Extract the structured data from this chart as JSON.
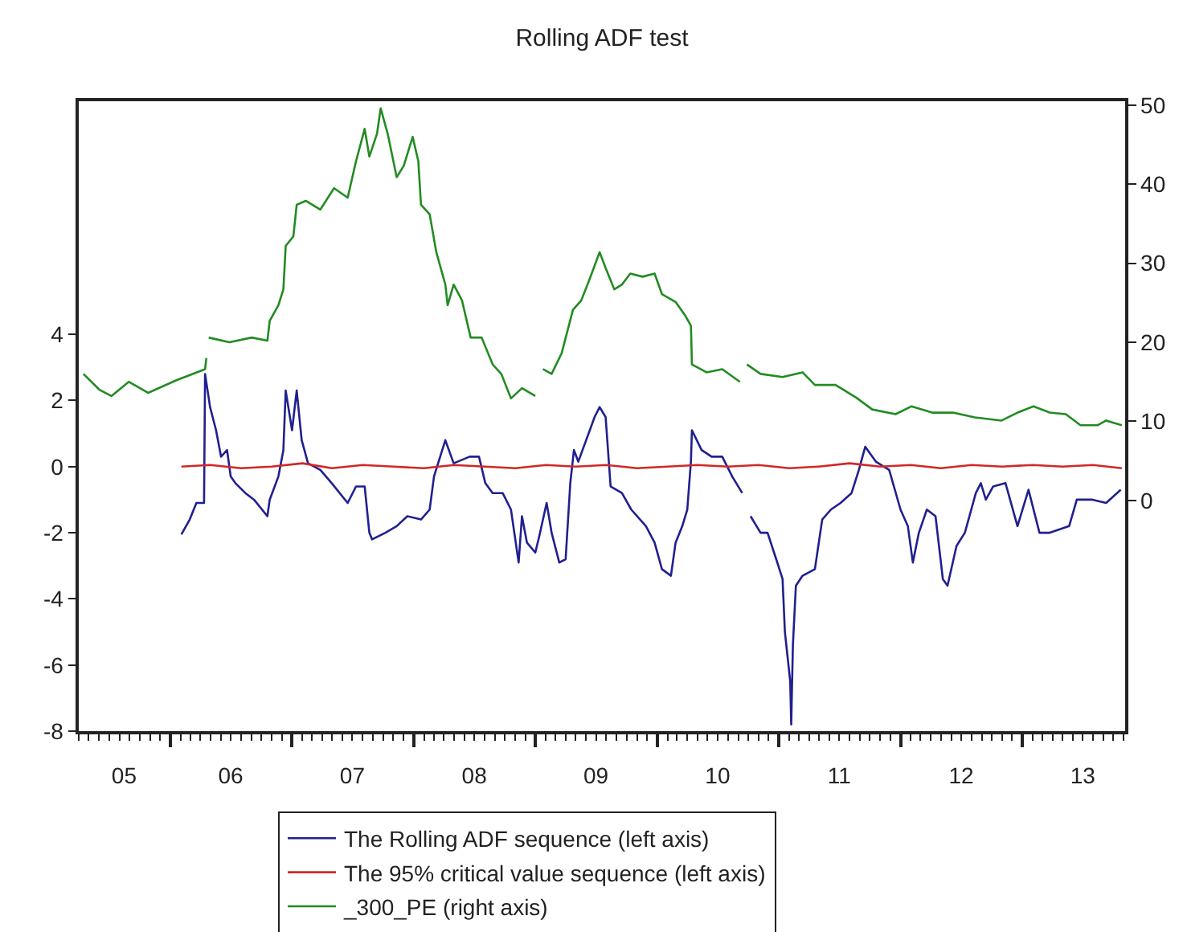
{
  "chart_data": {
    "type": "line",
    "title": "Rolling ADF test",
    "grid": false,
    "legend": "bottom",
    "xlim": [
      "2005-04-01",
      "2013-11-05"
    ],
    "xticks": [
      {
        "value": "2005-08-15",
        "label": "05"
      },
      {
        "value": "2006-01-01",
        "label": null
      },
      {
        "value": "2006-07-01",
        "label": "06"
      },
      {
        "value": "2007-01-01",
        "label": null
      },
      {
        "value": "2007-07-01",
        "label": "07"
      },
      {
        "value": "2008-01-01",
        "label": null
      },
      {
        "value": "2008-07-01",
        "label": "08"
      },
      {
        "value": "2009-01-01",
        "label": null
      },
      {
        "value": "2009-07-01",
        "label": "09"
      },
      {
        "value": "2010-01-01",
        "label": null
      },
      {
        "value": "2010-07-01",
        "label": "10"
      },
      {
        "value": "2011-01-01",
        "label": null
      },
      {
        "value": "2011-07-01",
        "label": "11"
      },
      {
        "value": "2012-01-01",
        "label": null
      },
      {
        "value": "2012-07-01",
        "label": "12"
      },
      {
        "value": "2013-01-01",
        "label": null
      },
      {
        "value": "2013-07-01",
        "label": "13"
      }
    ],
    "ylim": [
      -8,
      11.05
    ],
    "yticks": [
      -8,
      -6,
      -4,
      -2,
      0,
      2,
      4
    ],
    "y2lim": [
      -29.2,
      50.5
    ],
    "y2ticks": [
      0,
      10,
      20,
      30,
      40,
      50
    ],
    "series": [
      {
        "name": "The Rolling ADF sequence (left axis)",
        "color": "#202090",
        "x": [
          "2006-02-03",
          "2006-02-28",
          "2006-03-20",
          "2006-04-12",
          "2006-04-15",
          "2006-04-30",
          "2006-05-18",
          "2006-06-02",
          "2006-06-20",
          "2006-07-01",
          "2006-07-15",
          "2006-08-14",
          "2006-09-09",
          "2006-10-19",
          "2006-10-26",
          "2006-11-21",
          "2006-12-06",
          "2006-12-13",
          "2007-01-01",
          "2007-01-15",
          "2007-01-30",
          "2007-02-18",
          "2007-03-27",
          "2007-04-30",
          "2007-06-17",
          "2007-07-12",
          "2007-08-07",
          "2007-08-21",
          "2007-08-29",
          "2007-10-08",
          "2007-11-11",
          "2007-12-13",
          "2008-01-23",
          "2008-02-18",
          "2008-03-02",
          "2008-04-05",
          "2008-04-30",
          "2008-06-17",
          "2008-07-15",
          "2008-08-03",
          "2008-08-25",
          "2008-09-24",
          "2008-10-19",
          "2008-11-11",
          "2008-11-21",
          "2008-12-06",
          "2008-12-31",
          "2009-01-12",
          "2009-02-03",
          "2009-02-18",
          "2009-03-13",
          "2009-04-01",
          "2009-04-15",
          "2009-04-26",
          "2009-05-09",
          "2009-06-27",
          "2009-07-12",
          "2009-07-30",
          "2009-08-14",
          "2009-09-17",
          "2009-10-15",
          "2009-11-28",
          "2009-12-24",
          "2010-01-15",
          "2010-02-11",
          "2010-02-25",
          "2010-03-17",
          "2010-04-01",
          "2010-04-12",
          "2010-04-15",
          "2010-05-14",
          "2010-06-13",
          "2010-07-15",
          "2010-08-14",
          "2010-09-13",
          "2010-09-25",
          "2010-10-08",
          "2010-11-07",
          "2010-11-28",
          "2010-12-24",
          "2011-01-12",
          "2011-01-19",
          "2011-02-04",
          "2011-02-07",
          "2011-02-12",
          "2011-02-21",
          "2011-03-13",
          "2011-04-19",
          "2011-05-11",
          "2011-06-06",
          "2011-07-05",
          "2011-08-07",
          "2011-08-29",
          "2011-09-17",
          "2011-10-19",
          "2011-11-28",
          "2012-01-01",
          "2012-01-23",
          "2012-02-07",
          "2012-02-25",
          "2012-03-20",
          "2012-04-15",
          "2012-05-07",
          "2012-05-21",
          "2012-06-17",
          "2012-07-12",
          "2012-08-14",
          "2012-08-29",
          "2012-09-13",
          "2012-10-05",
          "2012-11-11",
          "2012-12-17",
          "2013-01-19",
          "2013-02-21",
          "2013-03-24",
          "2013-05-21",
          "2013-06-13",
          "2013-07-30",
          "2013-09-09",
          "2013-10-23"
        ],
        "values": [
          -2.05,
          -1.6,
          -1.1,
          -1.1,
          2.8,
          1.8,
          1.1,
          0.3,
          0.5,
          -0.3,
          -0.5,
          -0.8,
          -1.0,
          -1.5,
          -1.0,
          -0.3,
          0.5,
          2.3,
          1.1,
          2.3,
          0.8,
          0.1,
          -0.1,
          -0.5,
          -1.1,
          -0.6,
          -0.6,
          -2.0,
          -2.2,
          -2.0,
          -1.8,
          -1.5,
          -1.6,
          -1.3,
          -0.3,
          0.8,
          0.1,
          0.3,
          0.3,
          -0.5,
          -0.8,
          -0.8,
          -1.3,
          -2.9,
          -1.5,
          -2.3,
          -2.6,
          -2.1,
          -1.1,
          -2.0,
          -2.9,
          -2.8,
          -0.5,
          0.5,
          0.15,
          1.5,
          1.8,
          1.5,
          -0.6,
          -0.8,
          -1.3,
          -1.8,
          -2.3,
          -3.1,
          -3.3,
          -2.3,
          -1.8,
          -1.3,
          0.15,
          1.1,
          0.5,
          0.3,
          0.3,
          -0.3,
          -0.8,
          null,
          -1.5,
          -2.0,
          -2.0,
          -2.8,
          -3.4,
          -5.0,
          -6.5,
          -7.8,
          -5.4,
          -3.6,
          -3.3,
          -3.1,
          -1.6,
          -1.3,
          -1.1,
          -0.8,
          -0.1,
          0.6,
          0.15,
          -0.1,
          -1.3,
          -1.8,
          -2.9,
          -2.0,
          -1.3,
          -1.5,
          -3.4,
          -3.6,
          -2.4,
          -2.0,
          -0.8,
          -0.5,
          -1.0,
          -0.6,
          -0.5,
          -1.8,
          -0.7,
          -2.0,
          -2.0,
          -1.8,
          -1.0,
          -1.0,
          -1.1,
          -0.7
        ]
      },
      {
        "name": "The 95% critical value sequence (left axis)",
        "color": "#d02828",
        "x": [
          "2006-02-03",
          "2006-05-01",
          "2006-08-01",
          "2006-11-01",
          "2007-02-01",
          "2007-05-01",
          "2007-08-01",
          "2007-11-01",
          "2008-02-01",
          "2008-05-01",
          "2008-08-01",
          "2008-11-01",
          "2009-02-01",
          "2009-05-01",
          "2009-08-01",
          "2009-11-01",
          "2010-02-01",
          "2010-05-01",
          "2010-08-01",
          "2010-11-01",
          "2011-02-01",
          "2011-05-01",
          "2011-08-01",
          "2011-11-01",
          "2012-02-01",
          "2012-05-01",
          "2012-08-01",
          "2012-11-01",
          "2013-02-01",
          "2013-05-01",
          "2013-08-01",
          "2013-10-26"
        ],
        "values": [
          0.0,
          0.05,
          -0.05,
          0.0,
          0.1,
          -0.05,
          0.05,
          0.0,
          -0.05,
          0.05,
          0.0,
          -0.05,
          0.05,
          0.0,
          0.05,
          -0.05,
          0.0,
          0.05,
          0.0,
          0.05,
          -0.05,
          0.0,
          0.1,
          0.0,
          0.05,
          -0.05,
          0.05,
          0.0,
          0.05,
          0.0,
          0.05,
          -0.05
        ]
      },
      {
        "name": "_300_PE (right axis)",
        "color": "#228b22",
        "axis": "y2",
        "x": [
          "2005-04-15",
          "2005-06-02",
          "2005-07-08",
          "2005-08-29",
          "2005-10-26",
          "2006-01-19",
          "2006-04-15",
          "2006-04-19",
          "2006-04-22",
          "2006-04-26",
          "2006-06-27",
          "2006-09-02",
          "2006-10-19",
          "2006-10-26",
          "2006-11-21",
          "2006-12-06",
          "2006-12-13",
          "2007-01-05",
          "2007-01-15",
          "2007-02-11",
          "2007-03-27",
          "2007-05-07",
          "2007-06-17",
          "2007-07-12",
          "2007-08-07",
          "2007-08-21",
          "2007-09-13",
          "2007-09-24",
          "2007-10-15",
          "2007-11-11",
          "2007-12-02",
          "2007-12-29",
          "2008-01-15",
          "2008-01-23",
          "2008-02-18",
          "2008-03-09",
          "2008-04-05",
          "2008-04-12",
          "2008-04-30",
          "2008-05-25",
          "2008-06-20",
          "2008-07-23",
          "2008-08-25",
          "2008-09-20",
          "2008-10-19",
          "2008-11-21",
          "2008-12-31",
          "2009-01-10",
          "2009-01-23",
          "2009-02-18",
          "2009-03-20",
          "2009-04-23",
          "2009-05-18",
          "2009-06-13",
          "2009-07-12",
          "2009-07-30",
          "2009-08-25",
          "2009-09-17",
          "2009-10-12",
          "2009-11-18",
          "2009-12-24",
          "2010-01-15",
          "2010-02-25",
          "2010-03-27",
          "2010-04-12",
          "2010-04-15",
          "2010-05-29",
          "2010-07-15",
          "2010-09-06",
          "2010-09-16",
          "2010-09-27",
          "2010-11-07",
          "2011-01-12",
          "2011-03-13",
          "2011-04-19",
          "2011-06-20",
          "2011-08-21",
          "2011-10-08",
          "2011-12-17",
          "2012-02-03",
          "2012-04-05",
          "2012-06-06",
          "2012-08-11",
          "2012-10-30",
          "2012-12-17",
          "2013-02-03",
          "2013-03-24",
          "2013-05-11",
          "2013-06-24",
          "2013-08-14",
          "2013-09-09",
          "2013-10-26"
        ],
        "values": [
          16.0,
          14.0,
          13.2,
          15.0,
          13.6,
          15.2,
          16.6,
          18.0,
          null,
          20.6,
          20.0,
          20.6,
          20.2,
          22.7,
          24.7,
          26.7,
          32.2,
          33.4,
          37.4,
          37.9,
          36.8,
          39.5,
          38.3,
          42.9,
          47.0,
          43.5,
          46.4,
          49.6,
          46.4,
          40.9,
          42.3,
          46.0,
          42.9,
          37.4,
          36.2,
          31.4,
          27.3,
          24.7,
          27.3,
          25.3,
          20.6,
          20.6,
          17.2,
          16.0,
          12.9,
          14.2,
          13.2,
          null,
          16.6,
          16.0,
          18.6,
          24.1,
          25.3,
          28.1,
          31.4,
          29.4,
          26.7,
          27.3,
          28.7,
          28.3,
          28.7,
          26.1,
          25.1,
          23.3,
          22.1,
          17.2,
          16.2,
          16.6,
          15.0,
          null,
          17.2,
          16.0,
          15.6,
          16.2,
          14.6,
          14.6,
          13.0,
          11.5,
          10.9,
          11.9,
          11.1,
          11.1,
          10.5,
          10.1,
          11.1,
          11.9,
          11.1,
          10.9,
          9.5,
          9.5,
          10.1,
          9.5
        ]
      }
    ]
  }
}
